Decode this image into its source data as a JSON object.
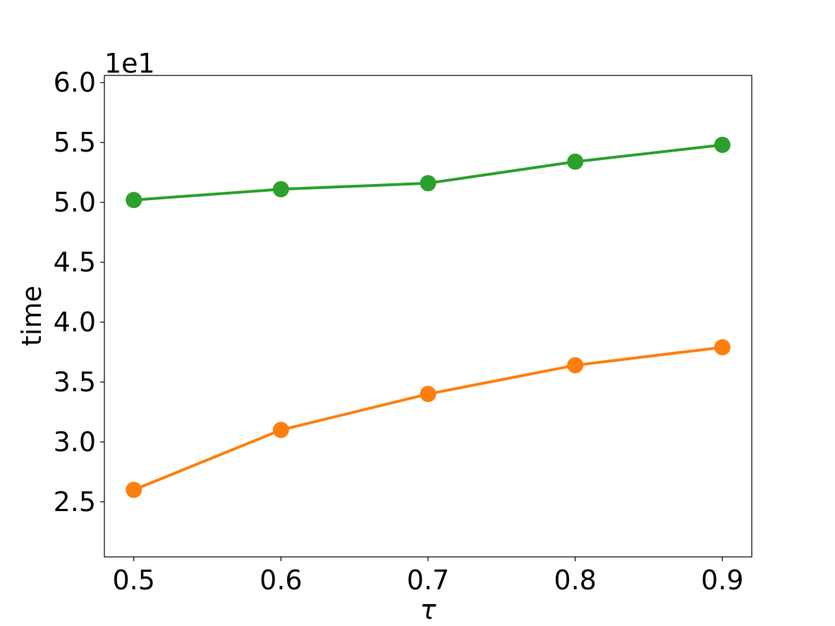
{
  "chart_data": {
    "type": "line",
    "title": "",
    "xlabel": "τ",
    "ylabel": "time",
    "y_offset_label": "1e1",
    "x": [
      0.5,
      0.6,
      0.7,
      0.8,
      0.9
    ],
    "x_tick_labels": [
      "0.5",
      "0.6",
      "0.7",
      "0.8",
      "0.9"
    ],
    "y_ticks": [
      2.5,
      3.0,
      3.5,
      4.0,
      4.5,
      5.0,
      5.5,
      6.0
    ],
    "y_tick_labels": [
      "2.5",
      "3.0",
      "3.5",
      "4.0",
      "4.5",
      "5.0",
      "5.5",
      "6.0"
    ],
    "xlim": [
      0.48,
      0.92
    ],
    "ylim": [
      2.04,
      6.06
    ],
    "grid": false,
    "series": [
      {
        "color": "#2ca02c",
        "values": [
          5.02,
          5.11,
          5.16,
          5.34,
          5.48
        ]
      },
      {
        "color": "#ff7f0e",
        "values": [
          2.6,
          3.1,
          3.4,
          3.64,
          3.79
        ]
      }
    ]
  }
}
